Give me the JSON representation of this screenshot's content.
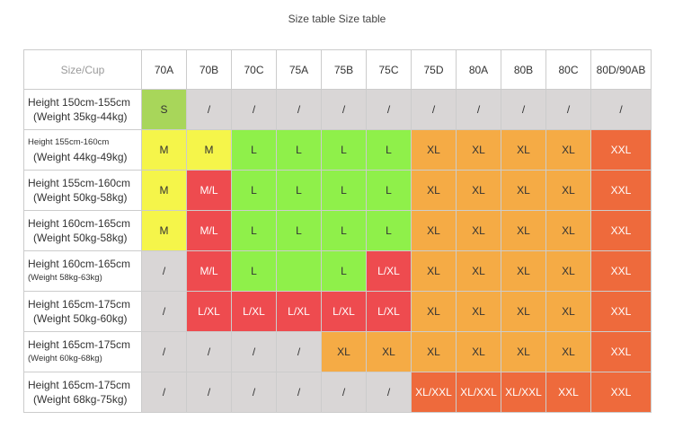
{
  "title": "Size table Size table",
  "header": {
    "corner": "Size/Cup",
    "cups": [
      "70A",
      "70B",
      "70C",
      "75A",
      "75B",
      "75C",
      "75D",
      "80A",
      "80B",
      "80C",
      "80D/90AB"
    ]
  },
  "rows": [
    {
      "height": "Height 150cm-155cm",
      "weight": "(Weight 35kg-44kg)",
      "cells": [
        "S",
        "/",
        "/",
        "/",
        "/",
        "/",
        "/",
        "/",
        "/",
        "/",
        "/"
      ]
    },
    {
      "height": "Height 155cm-160cm",
      "weight": "(Weight 44kg-49kg)",
      "cells": [
        "M",
        "M",
        "L",
        "L",
        "L",
        "L",
        "XL",
        "XL",
        "XL",
        "XL",
        "XXL"
      ]
    },
    {
      "height": "Height 155cm-160cm",
      "weight": "(Weight 50kg-58kg)",
      "cells": [
        "M",
        "M/L",
        "L",
        "L",
        "L",
        "L",
        "XL",
        "XL",
        "XL",
        "XL",
        "XXL"
      ]
    },
    {
      "height": "Height 160cm-165cm",
      "weight": "(Weight 50kg-58kg)",
      "cells": [
        "M",
        "M/L",
        "L",
        "L",
        "L",
        "L",
        "XL",
        "XL",
        "XL",
        "XL",
        "XXL"
      ]
    },
    {
      "height": "Height 160cm-165cm",
      "weight": "(Weight 58kg-63kg)",
      "cells": [
        "/",
        "M/L",
        "L",
        "",
        "L",
        "L/XL",
        "XL",
        "XL",
        "XL",
        "XL",
        "XXL"
      ]
    },
    {
      "height": "Height 165cm-175cm",
      "weight": "(Weight 50kg-60kg)",
      "cells": [
        "/",
        "L/XL",
        "L/XL",
        "L/XL",
        "L/XL",
        "L/XL",
        "XL",
        "XL",
        "XL",
        "XL",
        "XXL"
      ]
    },
    {
      "height": "Height 165cm-175cm",
      "weight": "(Weight 60kg-68kg)",
      "cells": [
        "/",
        "/",
        "/",
        "/",
        "XL",
        "XL",
        "XL",
        "XL",
        "XL",
        "XL",
        "XXL"
      ]
    },
    {
      "height": "Height 165cm-175cm",
      "weight": "(Weight 68kg-75kg)",
      "cells": [
        "/",
        "/",
        "/",
        "/",
        "/",
        "/",
        "XL/XXL",
        "XL/XXL",
        "XL/XXL",
        "XXL",
        "XXL"
      ]
    }
  ],
  "colors": {
    "na": "#d9d6d6",
    "S": "#a8d65a",
    "M": "#f5f54a",
    "M/L": "#ee4b4f",
    "L": "#8ff04a",
    "XL": "#f5ab45",
    "XXL": "#ee6a3c",
    "L/XL": "#ee4b4f",
    "XL/XXL": "#ee6a3c"
  }
}
